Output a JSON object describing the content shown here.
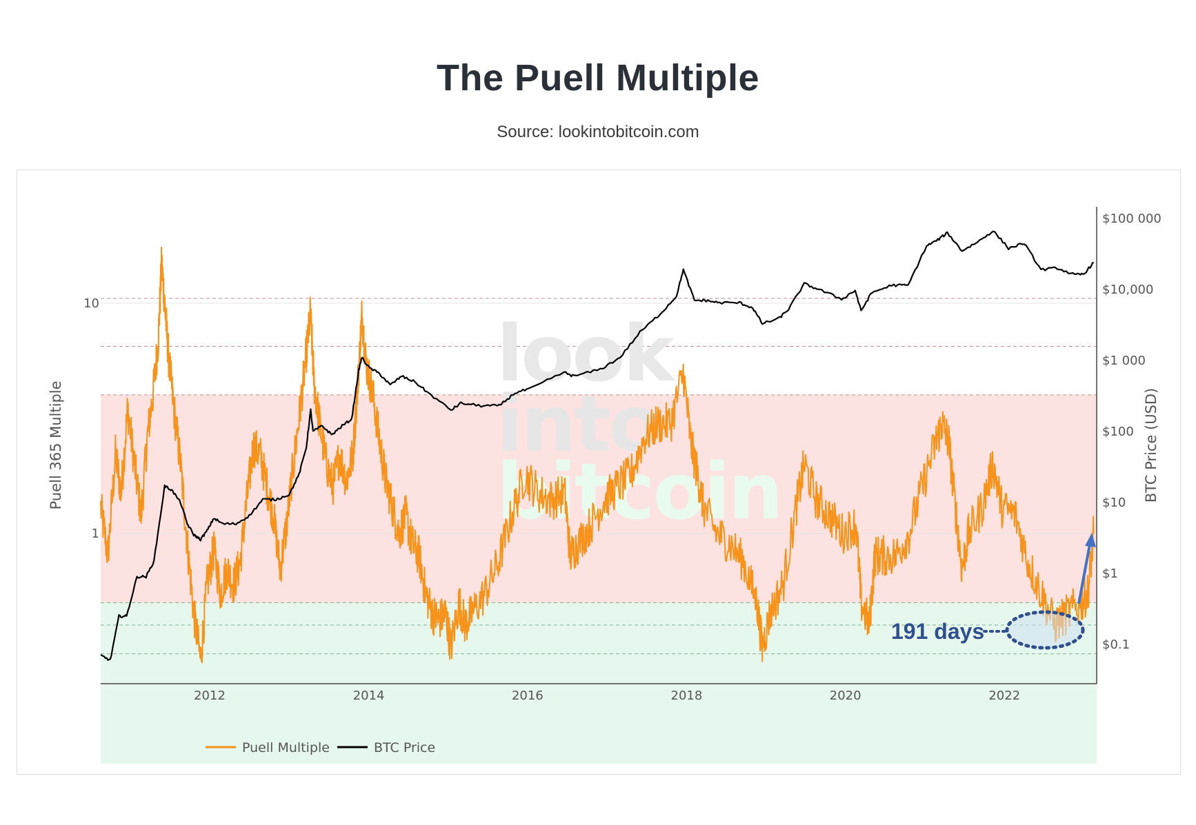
{
  "title": "The Puell Multiple",
  "subtitle": "Source: lookintobitcoin.com",
  "watermark": [
    "look",
    "into",
    "bitcoin"
  ],
  "annotation": {
    "label": "191 days",
    "color": "#2f4f8f"
  },
  "colors": {
    "puell": "#f7931a",
    "price": "#000000",
    "red_band": "#fde2e2",
    "green_band": "#e6f8ee",
    "grid": "#dddddd"
  },
  "chart_data": {
    "type": "line",
    "title": "The Puell Multiple",
    "subtitle": "Source: lookintobitcoin.com",
    "ylabel": "Puell 365 Multiple",
    "y2label": "BTC Price (USD)",
    "yscale": "log",
    "y2scale": "log",
    "xticks": [
      "2012",
      "2014",
      "2016",
      "2018",
      "2020",
      "2022"
    ],
    "yticks": [
      "1",
      "10"
    ],
    "y2ticks": [
      "$0.1",
      "$1",
      "$10",
      "$100",
      "$1 000",
      "$10,000",
      "$100 000"
    ],
    "xlim": [
      "2010-08-18",
      "2023-03-01"
    ],
    "ylim": [
      0.23,
      12
    ],
    "y2lim": [
      0.04,
      160000
    ],
    "bands": [
      {
        "name": "red",
        "y0": 0.19,
        "y1": 4.0,
        "color": "#fde2e2"
      },
      {
        "name": "green",
        "y0": 0.1,
        "y1": 0.5,
        "color": "#e6f8ee"
      }
    ],
    "band_lines": [
      0.3,
      0.4,
      0.5,
      4.0,
      6.5,
      10.5
    ],
    "legend": {
      "position": "bottom-left"
    },
    "series": [
      {
        "name": "Puell Multiple",
        "axis": "left",
        "color": "#f7931a",
        "x": [
          "2010-08-18",
          "2010-09-20",
          "2010-10-25",
          "2010-11-20",
          "2010-12-20",
          "2011-01-20",
          "2011-02-20",
          "2011-03-20",
          "2011-04-15",
          "2011-05-10",
          "2011-05-25",
          "2011-06-08",
          "2011-06-25",
          "2011-07-20",
          "2011-08-20",
          "2011-09-20",
          "2011-10-20",
          "2011-11-20",
          "2011-12-20",
          "2012-01-20",
          "2012-02-20",
          "2012-03-20",
          "2012-04-20",
          "2012-05-20",
          "2012-06-20",
          "2012-07-20",
          "2012-08-20",
          "2012-09-20",
          "2012-10-20",
          "2012-11-20",
          "2012-12-20",
          "2013-01-20",
          "2013-02-20",
          "2013-03-20",
          "2013-04-08",
          "2013-04-25",
          "2013-05-20",
          "2013-06-20",
          "2013-07-20",
          "2013-08-20",
          "2013-09-20",
          "2013-10-20",
          "2013-11-15",
          "2013-12-01",
          "2013-12-20",
          "2014-01-20",
          "2014-02-20",
          "2014-03-20",
          "2014-04-20",
          "2014-05-20",
          "2014-06-20",
          "2014-07-20",
          "2014-08-20",
          "2014-09-20",
          "2014-10-20",
          "2014-11-20",
          "2014-12-20",
          "2015-01-14",
          "2015-02-20",
          "2015-03-20",
          "2015-04-20",
          "2015-06-20",
          "2015-08-20",
          "2015-10-20",
          "2015-12-20",
          "2016-02-20",
          "2016-04-20",
          "2016-06-20",
          "2016-07-15",
          "2016-08-20",
          "2016-10-20",
          "2016-12-20",
          "2017-02-20",
          "2017-04-20",
          "2017-06-20",
          "2017-08-20",
          "2017-10-20",
          "2017-12-17",
          "2018-01-20",
          "2018-02-20",
          "2018-03-20",
          "2018-05-20",
          "2018-07-20",
          "2018-09-20",
          "2018-11-20",
          "2018-12-15",
          "2019-01-20",
          "2019-03-20",
          "2019-05-20",
          "2019-06-26",
          "2019-08-20",
          "2019-10-20",
          "2019-12-20",
          "2020-02-20",
          "2020-03-13",
          "2020-04-20",
          "2020-05-15",
          "2020-06-20",
          "2020-08-20",
          "2020-10-20",
          "2020-12-20",
          "2021-02-20",
          "2021-03-20",
          "2021-04-20",
          "2021-05-20",
          "2021-06-20",
          "2021-07-20",
          "2021-09-20",
          "2021-11-10",
          "2021-12-20",
          "2022-02-20",
          "2022-04-20",
          "2022-06-18",
          "2022-08-20",
          "2022-10-20",
          "2022-12-20",
          "2023-01-20",
          "2023-02-15"
        ],
        "y": [
          1.3,
          0.8,
          2.2,
          1.5,
          3.5,
          2.0,
          1.2,
          2.6,
          4.0,
          7.0,
          15.0,
          10.0,
          6.0,
          3.5,
          2.0,
          0.9,
          0.45,
          0.28,
          0.6,
          0.85,
          0.55,
          0.7,
          0.6,
          0.75,
          1.4,
          2.4,
          2.2,
          1.6,
          1.2,
          0.7,
          1.1,
          2.0,
          3.5,
          6.0,
          9.0,
          4.5,
          3.0,
          2.0,
          1.6,
          2.2,
          1.7,
          2.2,
          5.0,
          9.0,
          5.5,
          4.0,
          2.5,
          1.7,
          1.3,
          1.0,
          1.2,
          0.9,
          0.8,
          0.55,
          0.45,
          0.42,
          0.45,
          0.32,
          0.5,
          0.4,
          0.45,
          0.55,
          0.75,
          1.2,
          1.8,
          1.5,
          1.4,
          1.5,
          0.8,
          0.9,
          1.1,
          1.4,
          1.6,
          1.8,
          2.6,
          3.0,
          3.0,
          5.0,
          2.5,
          1.8,
          1.3,
          1.0,
          0.9,
          0.75,
          0.5,
          0.32,
          0.45,
          0.6,
          1.3,
          2.0,
          1.4,
          1.2,
          1.0,
          1.1,
          0.5,
          0.4,
          0.8,
          0.8,
          0.8,
          1.0,
          1.6,
          2.5,
          3.0,
          2.5,
          1.3,
          0.7,
          1.0,
          1.3,
          2.0,
          1.3,
          1.2,
          0.75,
          0.55,
          0.4,
          0.45,
          0.5,
          0.55,
          1.0
        ]
      },
      {
        "name": "BTC Price",
        "axis": "right",
        "color": "#000000",
        "x": [
          "2010-08-18",
          "2010-10-01",
          "2010-11-10",
          "2010-12-15",
          "2011-02-01",
          "2011-03-15",
          "2011-04-20",
          "2011-06-08",
          "2011-07-10",
          "2011-08-20",
          "2011-09-20",
          "2011-10-20",
          "2011-11-20",
          "2011-12-20",
          "2012-01-20",
          "2012-03-01",
          "2012-05-01",
          "2012-07-01",
          "2012-09-01",
          "2012-11-01",
          "2013-01-01",
          "2013-02-15",
          "2013-03-20",
          "2013-04-09",
          "2013-04-20",
          "2013-06-01",
          "2013-07-15",
          "2013-09-01",
          "2013-10-15",
          "2013-11-15",
          "2013-11-30",
          "2014-01-01",
          "2014-02-20",
          "2014-04-10",
          "2014-06-01",
          "2014-08-01",
          "2014-10-01",
          "2015-01-14",
          "2015-03-01",
          "2015-06-01",
          "2015-08-24",
          "2015-11-05",
          "2016-01-15",
          "2016-06-15",
          "2016-08-01",
          "2016-12-01",
          "2017-03-01",
          "2017-06-01",
          "2017-09-01",
          "2017-11-15",
          "2017-12-17",
          "2018-02-06",
          "2018-04-01",
          "2018-06-01",
          "2018-09-01",
          "2018-11-01",
          "2018-12-15",
          "2019-03-01",
          "2019-04-15",
          "2019-06-26",
          "2019-09-01",
          "2019-12-15",
          "2020-02-15",
          "2020-03-13",
          "2020-05-01",
          "2020-08-01",
          "2020-10-15",
          "2021-01-08",
          "2021-03-01",
          "2021-04-14",
          "2021-06-20",
          "2021-09-01",
          "2021-11-10",
          "2022-01-20",
          "2022-04-01",
          "2022-06-18",
          "2022-09-01",
          "2022-11-21",
          "2023-01-01",
          "2023-02-15"
        ],
        "y": [
          0.07,
          0.06,
          0.25,
          0.25,
          0.9,
          0.9,
          1.5,
          17,
          15,
          10,
          5,
          3.5,
          3,
          4,
          6,
          5,
          5,
          6.5,
          11,
          11,
          13,
          25,
          60,
          200,
          100,
          120,
          90,
          120,
          150,
          700,
          1100,
          800,
          650,
          450,
          600,
          500,
          350,
          200,
          250,
          230,
          230,
          350,
          400,
          680,
          600,
          750,
          1100,
          2500,
          4500,
          8000,
          19000,
          7000,
          7000,
          6500,
          6500,
          5500,
          3300,
          3900,
          5300,
          12000,
          10000,
          7300,
          9700,
          5000,
          9000,
          11500,
          11400,
          41000,
          50000,
          63000,
          35000,
          47000,
          67000,
          38000,
          45000,
          19000,
          20000,
          16000,
          16500,
          24000
        ]
      }
    ]
  },
  "legend": {
    "items": [
      {
        "label": "Puell Multiple"
      },
      {
        "label": "BTC Price"
      }
    ]
  }
}
